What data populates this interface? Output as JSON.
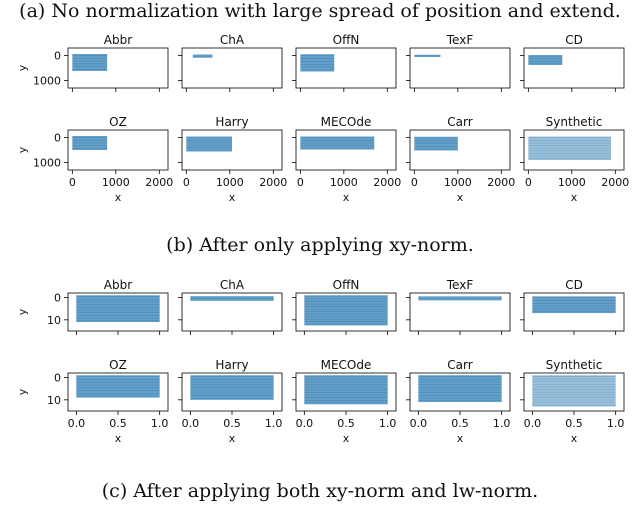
{
  "captions": {
    "a": "(a) No normalization with large spread of position and extend.",
    "b": "(b) After only applying xy-norm.",
    "c": "(c) After applying both xy-norm and lw-norm."
  },
  "colors": {
    "accent": "#1f77b4",
    "axis": "#000000"
  },
  "chart_data": [
    {
      "type": "heatmap",
      "panel": "b",
      "xlabel": "x",
      "ylabel": "y",
      "xlim": [
        -100,
        2200
      ],
      "ylim": [
        1300,
        -300
      ],
      "x_ticks": [
        0,
        1000,
        2000
      ],
      "y_ticks": [
        0,
        1000
      ],
      "x_tick_labels": [
        "0",
        "1000",
        "2000"
      ],
      "y_tick_labels": [
        "0",
        "1000"
      ],
      "datasets": [
        {
          "name": "Abbr",
          "x": [
            0,
            800
          ],
          "y": [
            -60,
            620
          ]
        },
        {
          "name": "ChA",
          "x": [
            150,
            600
          ],
          "y": [
            -40,
            90
          ]
        },
        {
          "name": "OffN",
          "x": [
            0,
            780
          ],
          "y": [
            -50,
            640
          ]
        },
        {
          "name": "TexF",
          "x": [
            0,
            600
          ],
          "y": [
            -30,
            60
          ]
        },
        {
          "name": "CD",
          "x": [
            0,
            780
          ],
          "y": [
            -20,
            380
          ]
        },
        {
          "name": "OZ",
          "x": [
            0,
            800
          ],
          "y": [
            -60,
            500
          ]
        },
        {
          "name": "Harry",
          "x": [
            0,
            1050
          ],
          "y": [
            -40,
            560
          ]
        },
        {
          "name": "MECOde",
          "x": [
            0,
            1700
          ],
          "y": [
            -40,
            480
          ]
        },
        {
          "name": "Carr",
          "x": [
            0,
            1000
          ],
          "y": [
            -30,
            520
          ]
        },
        {
          "name": "Synthetic",
          "x": [
            0,
            1900
          ],
          "y": [
            -40,
            900
          ]
        }
      ]
    },
    {
      "type": "heatmap",
      "panel": "c",
      "xlabel": "x",
      "ylabel": "y",
      "xlim": [
        -0.1,
        1.1
      ],
      "ylim": [
        15,
        -2
      ],
      "x_ticks": [
        0.0,
        0.5,
        1.0
      ],
      "y_ticks": [
        0,
        10
      ],
      "x_tick_labels": [
        "0.0",
        "0.5",
        "1.0"
      ],
      "y_tick_labels": [
        "0",
        "10"
      ],
      "datasets": [
        {
          "name": "Abbr",
          "x": [
            0,
            1
          ],
          "y": [
            -1,
            11
          ]
        },
        {
          "name": "ChA",
          "x": [
            0,
            1
          ],
          "y": [
            -0.6,
            1.5
          ]
        },
        {
          "name": "OffN",
          "x": [
            0,
            1
          ],
          "y": [
            -1,
            12.5
          ]
        },
        {
          "name": "TexF",
          "x": [
            0,
            1
          ],
          "y": [
            -0.5,
            1.3
          ]
        },
        {
          "name": "CD",
          "x": [
            0,
            1
          ],
          "y": [
            -0.5,
            7
          ]
        },
        {
          "name": "OZ",
          "x": [
            0,
            1
          ],
          "y": [
            -1,
            9
          ]
        },
        {
          "name": "Harry",
          "x": [
            0,
            1
          ],
          "y": [
            -1,
            10
          ]
        },
        {
          "name": "MECOde",
          "x": [
            0,
            1
          ],
          "y": [
            -1,
            12
          ]
        },
        {
          "name": "Carr",
          "x": [
            0,
            1
          ],
          "y": [
            -1,
            11
          ]
        },
        {
          "name": "Synthetic",
          "x": [
            0,
            1
          ],
          "y": [
            -1,
            13
          ]
        }
      ]
    }
  ]
}
